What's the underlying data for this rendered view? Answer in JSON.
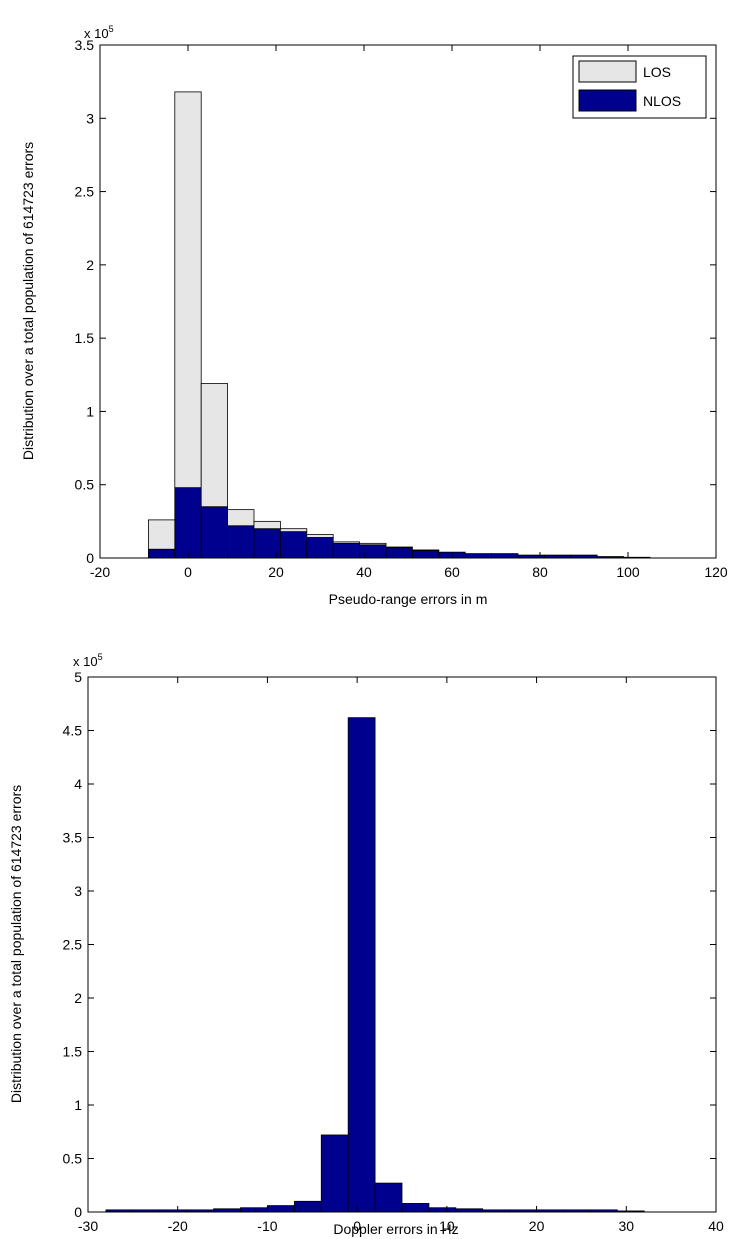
{
  "chart_data": [
    {
      "type": "bar",
      "stacked": true,
      "bin_width": 6.0,
      "bin_starts": [
        -9,
        -3,
        3,
        9,
        15,
        21,
        27,
        33,
        39,
        45,
        51,
        57,
        63,
        69,
        75,
        81,
        87,
        93,
        99
      ],
      "series": [
        {
          "name": "NLOS",
          "color": "#00008f",
          "values": [
            6000,
            48000,
            35000,
            22000,
            20000,
            18000,
            14000,
            10000,
            9000,
            7000,
            5000,
            4000,
            3000,
            3000,
            2000,
            2000,
            2000,
            1000,
            500
          ]
        },
        {
          "name": "LOS",
          "color": "#e6e6e6",
          "values": [
            20000,
            270000,
            84000,
            11000,
            5000,
            2000,
            2000,
            1000,
            1000,
            500,
            500,
            0,
            0,
            0,
            0,
            0,
            0,
            0,
            0
          ]
        }
      ],
      "title": "",
      "xlabel": "Pseudo-range errors in m",
      "ylabel": "Distribution over a total population of 614723 errors",
      "xlim": [
        -20,
        120
      ],
      "ylim": [
        0,
        350000
      ],
      "xticks": [
        -20,
        0,
        20,
        40,
        60,
        80,
        100,
        120
      ],
      "xtick_labels": [
        "-20",
        "0",
        "20",
        "40",
        "60",
        "80",
        "100",
        "120"
      ],
      "yticks": [
        0,
        50000,
        100000,
        150000,
        200000,
        250000,
        300000,
        350000
      ],
      "ytick_labels": [
        "0",
        "0.5",
        "1",
        "1.5",
        "2",
        "2.5",
        "3",
        "3.5"
      ],
      "multiplier_label": "x 10",
      "multiplier_exponent": "5",
      "legend_position": "top-right",
      "grid": false
    },
    {
      "type": "bar",
      "bin_width": 3.0,
      "bin_starts": [
        -28,
        -25,
        -22,
        -19,
        -16,
        -13,
        -10,
        -7,
        -4,
        -1,
        2,
        5,
        8,
        11,
        14,
        17,
        20,
        23,
        26,
        29
      ],
      "series": [
        {
          "color": "#00008f",
          "values": [
            2000,
            2000,
            2000,
            2000,
            3000,
            4000,
            6000,
            10000,
            72000,
            462000,
            27000,
            8000,
            4000,
            3000,
            2000,
            2000,
            2000,
            2000,
            2000,
            1000
          ]
        }
      ],
      "title": "",
      "xlabel": "Doppler errors in Hz",
      "ylabel": "Distribution over a total population of 614723 errors",
      "xlim": [
        -30,
        40
      ],
      "ylim": [
        0,
        500000
      ],
      "xticks": [
        -30,
        -20,
        -10,
        0,
        10,
        20,
        30,
        40
      ],
      "xtick_labels": [
        "-30",
        "-20",
        "-10",
        "0",
        "10",
        "20",
        "30",
        "40"
      ],
      "yticks": [
        0,
        50000,
        100000,
        150000,
        200000,
        250000,
        300000,
        350000,
        400000,
        450000,
        500000
      ],
      "ytick_labels": [
        "0",
        "0.5",
        "1",
        "1.5",
        "2",
        "2.5",
        "3",
        "3.5",
        "4",
        "4.5",
        "5"
      ],
      "multiplier_label": "x 10",
      "multiplier_exponent": "5",
      "grid": false
    }
  ]
}
